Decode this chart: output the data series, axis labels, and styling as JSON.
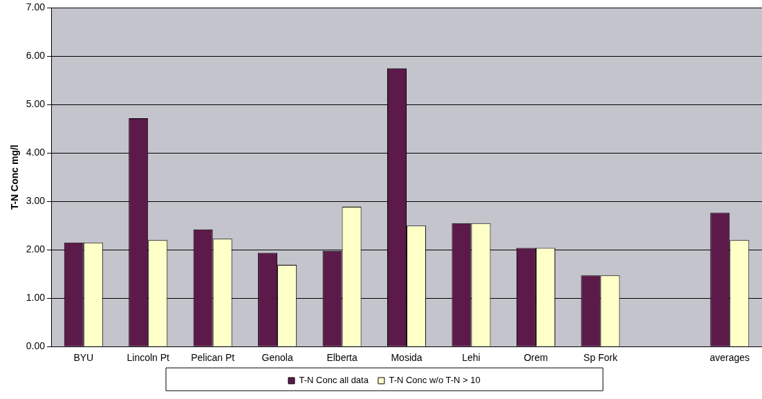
{
  "chart_data": {
    "type": "bar",
    "ylabel": "T-N Conc mg/l",
    "categories": [
      "BYU",
      "Lincoln Pt",
      "Pelican Pt",
      "Genola",
      "Elberta",
      "Mosida",
      "Lehi",
      "Orem",
      "Sp Fork",
      null,
      "averages"
    ],
    "series": [
      {
        "name": "T-N Conc all data",
        "color": "#5c1a4a",
        "values": [
          2.15,
          4.72,
          2.42,
          1.94,
          1.98,
          5.75,
          2.55,
          2.04,
          1.47,
          null,
          2.77
        ]
      },
      {
        "name": "T-N Conc w/o T-N > 10",
        "color": "#ffffc8",
        "values": [
          2.15,
          2.2,
          2.23,
          1.69,
          2.89,
          2.5,
          2.55,
          2.04,
          1.47,
          null,
          2.2
        ]
      }
    ],
    "ylim": [
      0,
      7
    ],
    "yticks": [
      {
        "value": 0,
        "label": "0.00"
      },
      {
        "value": 1,
        "label": "1.00"
      },
      {
        "value": 2,
        "label": "2.00"
      },
      {
        "value": 3,
        "label": "3.00"
      },
      {
        "value": 4,
        "label": "4.00"
      },
      {
        "value": 5,
        "label": "5.00"
      },
      {
        "value": 6,
        "label": "6.00"
      },
      {
        "value": 7,
        "label": "7.00"
      }
    ],
    "grid": "y",
    "legend": "bottom"
  }
}
